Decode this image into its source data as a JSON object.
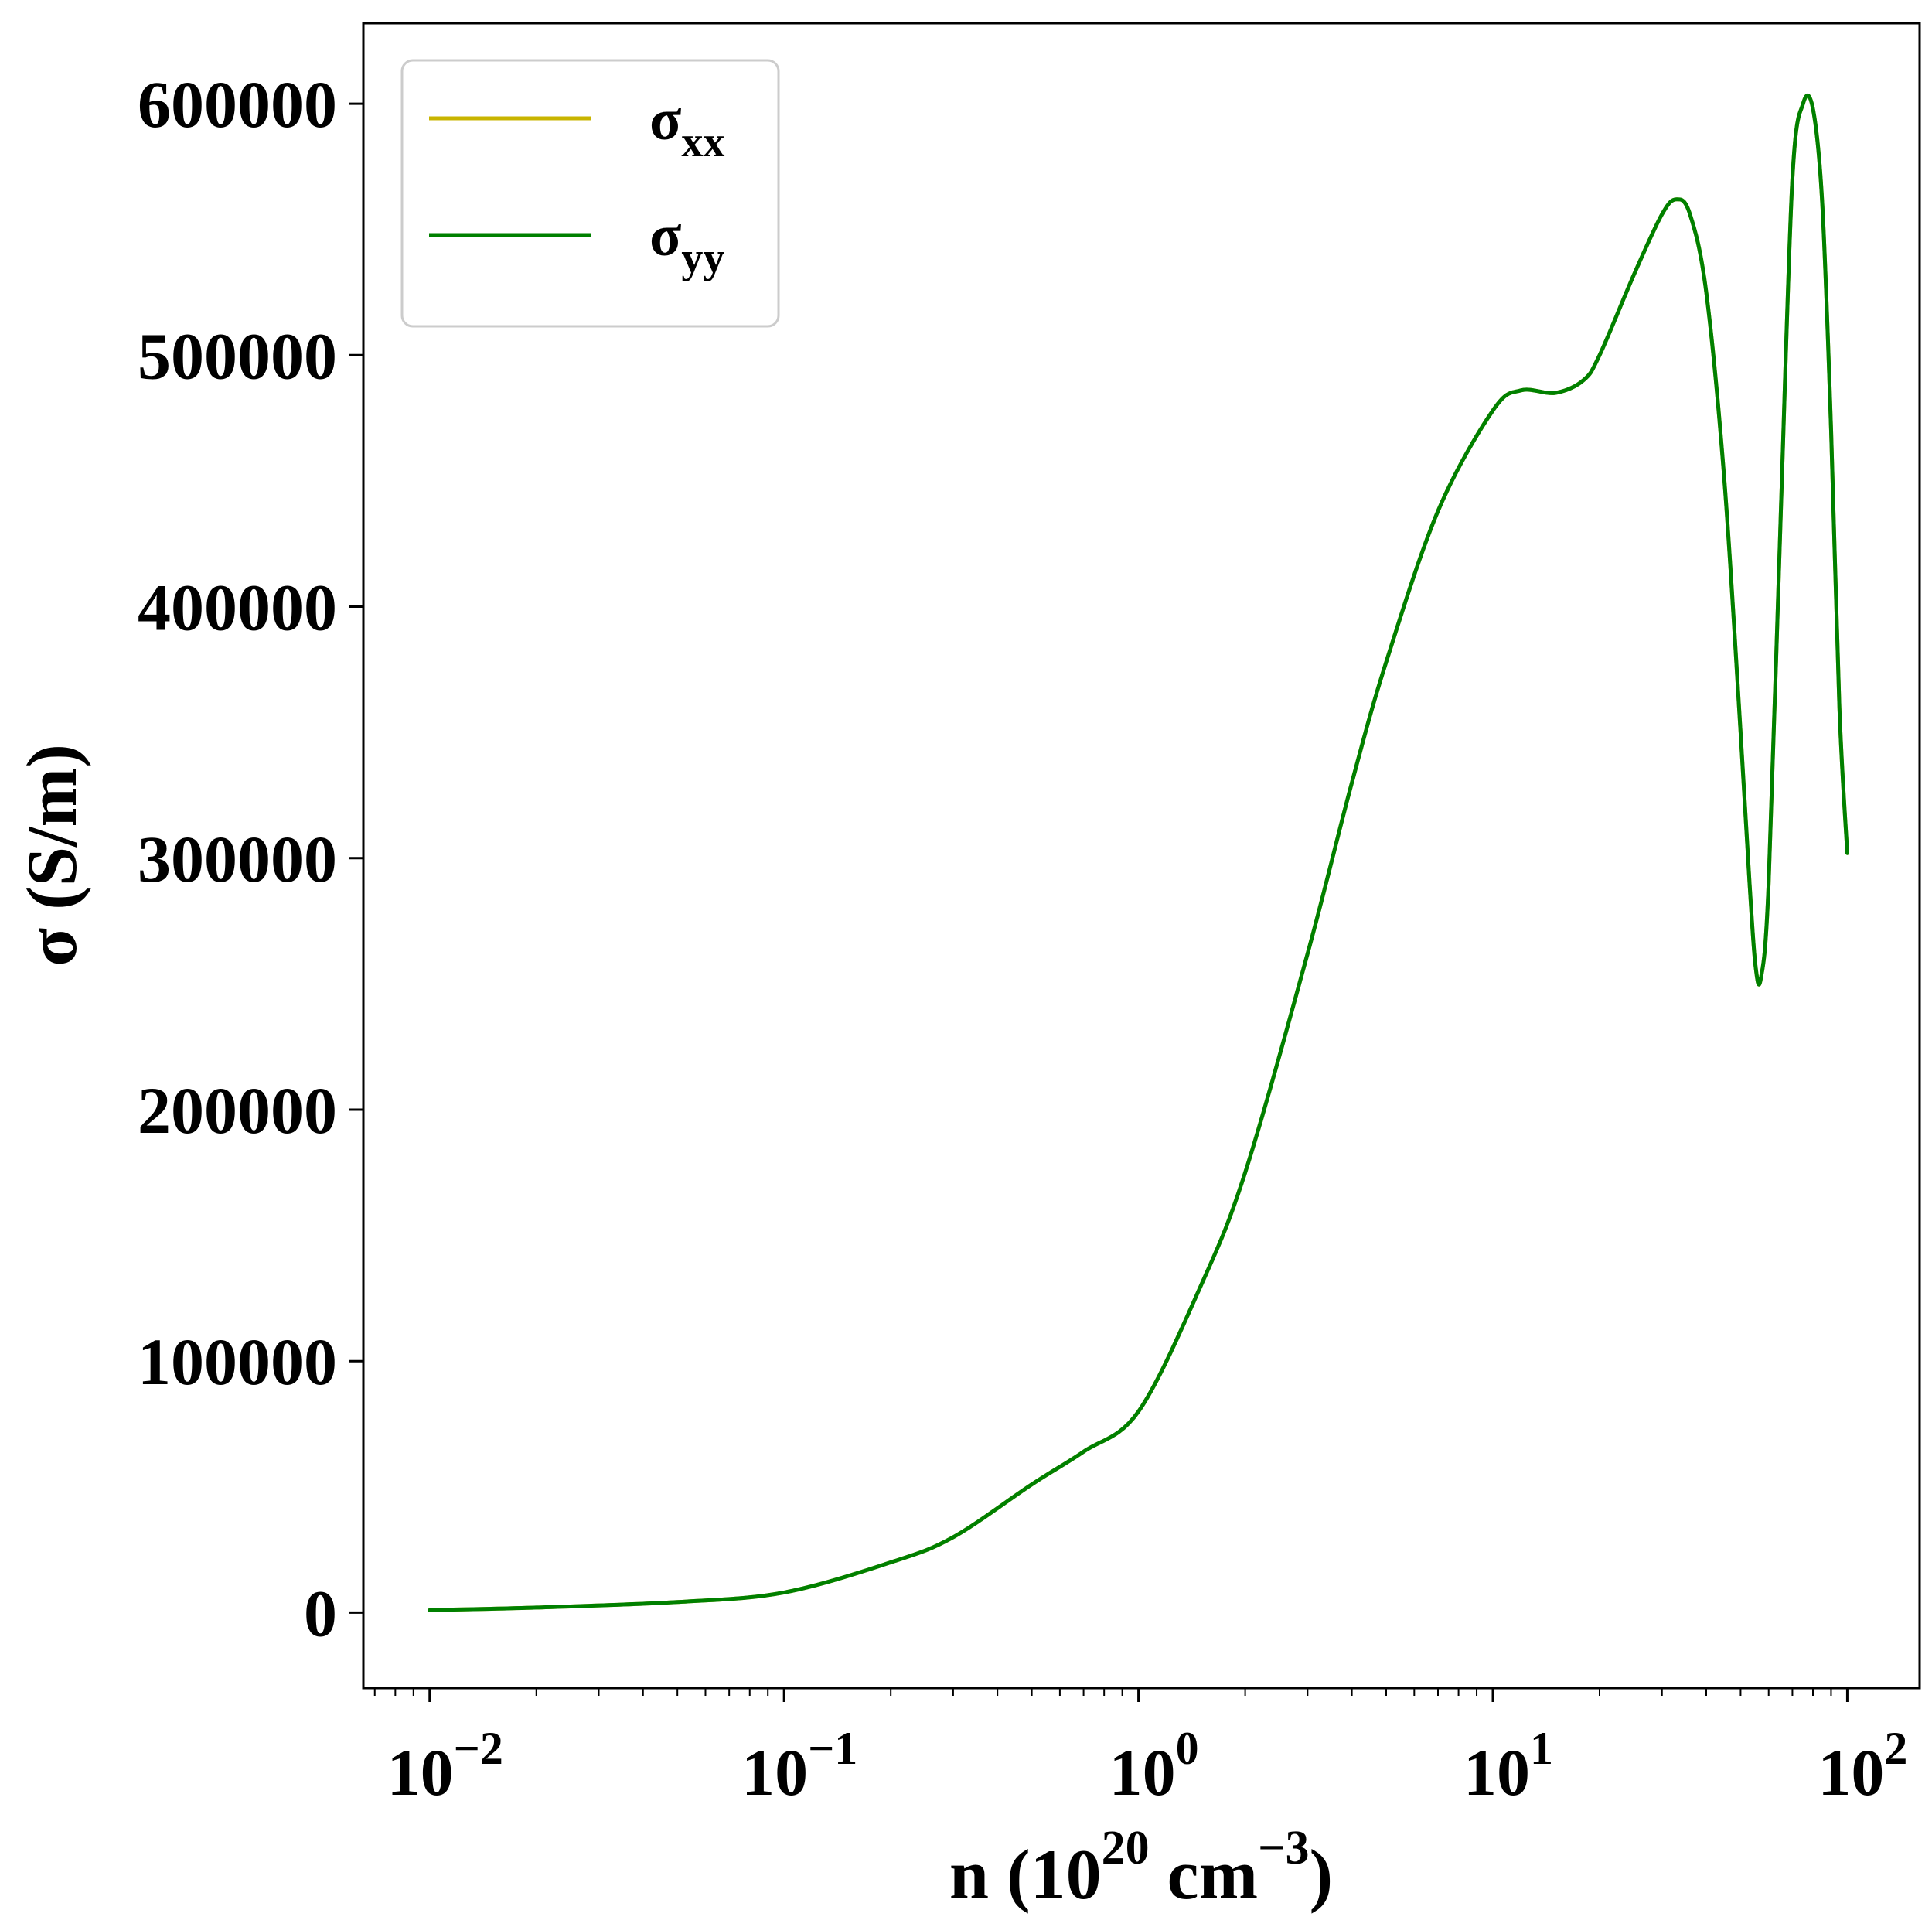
{
  "chart_data": {
    "type": "line",
    "title": "",
    "xlabel": {
      "main": "n (10",
      "sup1": "20",
      "mid": " cm",
      "sup2": "−3",
      "end": ")"
    },
    "ylabel": "σ (S/m)",
    "xscale": "log",
    "xlim": [
      0.0065,
      160
    ],
    "ylim": [
      -30000,
      632000
    ],
    "grid": false,
    "legend_position": "top-left",
    "x_ticks": [
      {
        "value": 0.01,
        "base": "10",
        "exp": "−2"
      },
      {
        "value": 0.1,
        "base": "10",
        "exp": "−1"
      },
      {
        "value": 1,
        "base": "10",
        "exp": "0"
      },
      {
        "value": 10,
        "base": "10",
        "exp": "1"
      },
      {
        "value": 100,
        "base": "10",
        "exp": "2"
      }
    ],
    "y_ticks": [
      0,
      100000,
      200000,
      300000,
      400000,
      500000,
      600000
    ],
    "y_tick_labels": [
      "0",
      "100000",
      "200000",
      "300000",
      "400000",
      "500000",
      "600000"
    ],
    "series": [
      {
        "name": "σ",
        "subscript": "xx",
        "color": "#c8b400",
        "x": [
          0.01,
          0.02,
          0.05,
          0.1,
          0.2,
          0.3,
          0.5,
          0.7,
          1,
          1.5,
          2,
          3,
          4,
          5,
          7,
          10,
          12,
          15,
          18,
          20,
          25,
          30,
          33,
          36,
          40,
          45,
          50,
          53,
          55,
          57,
          60,
          65,
          70,
          75,
          80,
          85,
          90,
          95,
          100
        ],
        "y": [
          1000,
          2000,
          4200,
          8000,
          20000,
          30000,
          51000,
          64000,
          80000,
          130000,
          175000,
          262000,
          330000,
          378000,
          438000,
          478000,
          486000,
          485000,
          490000,
          500000,
          532000,
          556000,
          562000,
          556000,
          525000,
          450000,
          350000,
          290000,
          258000,
          252000,
          290000,
          440000,
          570000,
          600000,
          598000,
          560000,
          470000,
          360000,
          302000
        ]
      },
      {
        "name": "σ",
        "subscript": "yy",
        "color": "#008000",
        "x": [
          0.01,
          0.02,
          0.05,
          0.1,
          0.2,
          0.3,
          0.5,
          0.7,
          1,
          1.5,
          2,
          3,
          4,
          5,
          7,
          10,
          12,
          15,
          18,
          20,
          25,
          30,
          33,
          36,
          40,
          45,
          50,
          53,
          55,
          57,
          60,
          65,
          70,
          75,
          80,
          85,
          90,
          95,
          100
        ],
        "y": [
          1000,
          2000,
          4200,
          8000,
          20000,
          30000,
          51000,
          64000,
          80000,
          130000,
          175000,
          262000,
          330000,
          378000,
          438000,
          478000,
          486000,
          485000,
          490000,
          500000,
          532000,
          556000,
          562000,
          556000,
          525000,
          450000,
          350000,
          290000,
          258000,
          252000,
          290000,
          440000,
          570000,
          600000,
          598000,
          560000,
          470000,
          360000,
          302000
        ]
      }
    ]
  }
}
